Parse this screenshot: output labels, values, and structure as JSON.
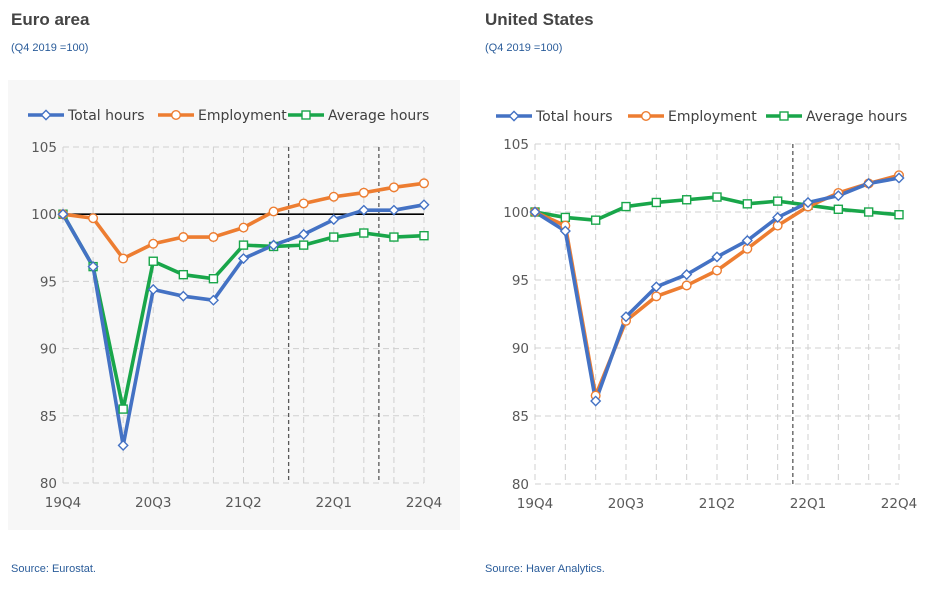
{
  "panels": [
    {
      "title": "Euro area",
      "subtitle": "(Q4 2019 =100)",
      "source": "Source: Eurostat."
    },
    {
      "title": "United States",
      "subtitle": "(Q4 2019 =100)",
      "source": "Source: Haver Analytics."
    }
  ],
  "colors": {
    "total_hours": "#4472c4",
    "employment": "#ed7d31",
    "average_hours": "#19a64a",
    "grid": "#d0d0d0",
    "axis_text": "#595959",
    "reference_line": "#000000",
    "divider": "#595959"
  },
  "chart_data": [
    {
      "type": "line",
      "title": "Euro area",
      "xlabel": "",
      "ylabel": "",
      "categories": [
        "19Q4",
        "20Q1",
        "20Q2",
        "20Q3",
        "20Q4",
        "21Q1",
        "21Q2",
        "21Q3",
        "21Q4",
        "22Q1",
        "22Q2",
        "22Q3",
        "22Q4"
      ],
      "x_tick_labels": [
        "19Q4",
        "",
        "",
        "20Q3",
        "",
        "",
        "21Q2",
        "",
        "",
        "22Q1",
        "",
        "",
        "22Q4"
      ],
      "ylim": [
        80,
        105
      ],
      "yticks": [
        80,
        85,
        90,
        95,
        100,
        105
      ],
      "grid": true,
      "legend_position": "top",
      "reference_line": 100,
      "dividers_after": [
        "21Q3",
        "22Q2"
      ],
      "series": [
        {
          "name": "Total hours",
          "marker": "diamond",
          "values": [
            100,
            96.1,
            82.8,
            94.4,
            93.9,
            93.6,
            96.7,
            97.7,
            98.5,
            99.6,
            100.3,
            100.3,
            100.7
          ]
        },
        {
          "name": "Employment",
          "marker": "circle",
          "values": [
            100,
            99.7,
            96.7,
            97.8,
            98.3,
            98.3,
            99.0,
            100.2,
            100.8,
            101.3,
            101.6,
            102.0,
            102.3
          ]
        },
        {
          "name": "Average hours",
          "marker": "square",
          "values": [
            100,
            96.1,
            85.5,
            96.5,
            95.5,
            95.2,
            97.7,
            97.6,
            97.7,
            98.3,
            98.6,
            98.3,
            98.4
          ]
        }
      ]
    },
    {
      "type": "line",
      "title": "United States",
      "xlabel": "",
      "ylabel": "",
      "categories": [
        "19Q4",
        "20Q1",
        "20Q2",
        "20Q3",
        "20Q4",
        "21Q1",
        "21Q2",
        "21Q3",
        "21Q4",
        "22Q1",
        "22Q2",
        "22Q3",
        "22Q4"
      ],
      "x_tick_labels": [
        "19Q4",
        "",
        "",
        "20Q3",
        "",
        "",
        "21Q2",
        "",
        "",
        "22Q1",
        "",
        "",
        "22Q4"
      ],
      "ylim": [
        80,
        105
      ],
      "yticks": [
        80,
        85,
        90,
        95,
        100,
        105
      ],
      "grid": true,
      "legend_position": "top",
      "reference_line": null,
      "dividers_after": [
        "21Q4"
      ],
      "series": [
        {
          "name": "Total hours",
          "marker": "diamond",
          "values": [
            100,
            98.6,
            86.1,
            92.3,
            94.5,
            95.4,
            96.7,
            97.9,
            99.6,
            100.7,
            101.2,
            102.1,
            102.5
          ]
        },
        {
          "name": "Employment",
          "marker": "circle",
          "values": [
            100,
            99.0,
            86.5,
            92.0,
            93.8,
            94.6,
            95.7,
            97.3,
            99.0,
            100.4,
            101.4,
            102.1,
            102.7
          ]
        },
        {
          "name": "Average hours",
          "marker": "square",
          "values": [
            100,
            99.6,
            99.4,
            100.4,
            100.7,
            100.9,
            101.1,
            100.6,
            100.8,
            100.5,
            100.2,
            100.0,
            99.8
          ]
        }
      ]
    }
  ]
}
